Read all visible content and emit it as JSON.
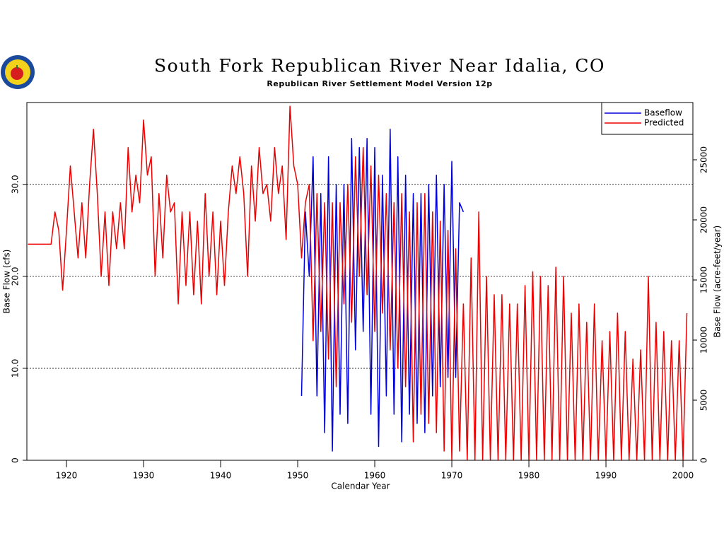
{
  "chart_data": {
    "type": "line",
    "title": "South Fork Republican River Near Idalia, CO",
    "subtitle": "Republican River Settlement Model Version 12p",
    "xlabel": "Calendar Year",
    "ylabel": "Base Flow (cfs)",
    "y2label": "Base Flow (acre-feet/year)",
    "xlim": [
      1914.86,
      2001.28
    ],
    "xticks": [
      1920,
      1930,
      1940,
      1950,
      1960,
      1970,
      1980,
      1990,
      2000
    ],
    "ylim": [
      0,
      38.9
    ],
    "yticks": [
      0,
      {
        "value": 10,
        "label": "10.0"
      },
      {
        "value": 20,
        "label": "20.0"
      },
      {
        "value": 30,
        "label": "30.0"
      }
    ],
    "y2lim": [
      0,
      29765
    ],
    "y2ticks": [
      0,
      5000,
      10000,
      15000,
      20000,
      25000
    ],
    "grid": true,
    "legend": "upper right",
    "x": [
      1915,
      1915.5,
      1916,
      1916.5,
      1917,
      1917.5,
      1918,
      1918.5,
      1919,
      1919.5,
      1920,
      1920.5,
      1921,
      1921.5,
      1922,
      1922.5,
      1923,
      1923.5,
      1924,
      1924.5,
      1925,
      1925.5,
      1926,
      1926.5,
      1927,
      1927.5,
      1928,
      1928.5,
      1929,
      1929.5,
      1930,
      1930.5,
      1931,
      1931.5,
      1932,
      1932.5,
      1933,
      1933.5,
      1934,
      1934.5,
      1935,
      1935.5,
      1936,
      1936.5,
      1937,
      1937.5,
      1938,
      1938.5,
      1939,
      1939.5,
      1940,
      1940.5,
      1941,
      1941.5,
      1942,
      1942.5,
      1943,
      1943.5,
      1944,
      1944.5,
      1945,
      1945.5,
      1946,
      1946.5,
      1947,
      1947.5,
      1948,
      1948.5,
      1949,
      1949.5,
      1950,
      1950.5,
      1951,
      1951.5,
      1952,
      1952.5,
      1953,
      1953.5,
      1954,
      1954.5,
      1955,
      1955.5,
      1956,
      1956.5,
      1957,
      1957.5,
      1958,
      1958.5,
      1959,
      1959.5,
      1960,
      1960.5,
      1961,
      1961.5,
      1962,
      1962.5,
      1963,
      1963.5,
      1964,
      1964.5,
      1965,
      1965.5,
      1966,
      1966.5,
      1967,
      1967.5,
      1968,
      1968.5,
      1969,
      1969.5,
      1970,
      1970.5,
      1971,
      1971.5,
      1972,
      1972.5,
      1973,
      1973.5,
      1974,
      1974.5,
      1975,
      1975.5,
      1976,
      1976.5,
      1977,
      1977.5,
      1978,
      1978.5,
      1979,
      1979.5,
      1980,
      1980.5,
      1981,
      1981.5,
      1982,
      1982.5,
      1983,
      1983.5,
      1984,
      1984.5,
      1985,
      1985.5,
      1986,
      1986.5,
      1987,
      1987.5,
      1988,
      1988.5,
      1989,
      1989.5,
      1990,
      1990.5,
      1991,
      1991.5,
      1992,
      1992.5,
      1993,
      1993.5,
      1994,
      1994.5,
      1995,
      1995.5,
      1996,
      1996.5,
      1997,
      1997.5,
      1998,
      1998.5,
      1999,
      1999.5,
      2000,
      2000.5
    ],
    "series": [
      {
        "name": "Baseflow",
        "color": "#0000dd",
        "values": [
          null,
          null,
          null,
          null,
          null,
          null,
          null,
          null,
          null,
          null,
          null,
          null,
          null,
          null,
          null,
          null,
          null,
          null,
          null,
          null,
          null,
          null,
          null,
          null,
          null,
          null,
          null,
          null,
          null,
          null,
          null,
          null,
          null,
          null,
          null,
          null,
          null,
          null,
          null,
          null,
          null,
          null,
          null,
          null,
          null,
          null,
          null,
          null,
          null,
          null,
          null,
          null,
          null,
          null,
          null,
          null,
          null,
          null,
          null,
          null,
          null,
          null,
          null,
          null,
          null,
          null,
          null,
          null,
          null,
          null,
          null,
          7,
          27,
          20,
          33,
          7,
          29,
          3,
          33,
          1,
          30,
          5,
          30,
          4,
          35,
          12,
          34,
          14,
          35,
          5,
          34,
          1.5,
          31,
          7,
          36,
          5,
          33,
          2,
          31,
          5,
          29,
          4,
          29,
          3,
          30,
          7,
          31,
          8,
          30,
          9,
          32.5,
          9,
          28,
          27,
          null,
          null,
          null,
          null,
          null,
          null,
          null,
          null,
          null,
          null,
          null,
          null,
          null,
          null,
          null,
          null,
          null,
          null,
          null,
          null,
          null,
          null,
          null,
          null,
          null,
          null,
          null,
          null,
          null,
          null,
          null,
          null,
          null,
          null,
          null,
          null,
          null,
          null,
          null,
          null,
          null,
          null,
          null,
          null,
          null,
          null,
          null,
          null,
          null,
          null,
          null,
          null,
          null,
          null,
          null,
          null,
          null,
          null
        ]
      },
      {
        "name": "Predicted",
        "color": "#ee0000",
        "values": [
          23.5,
          23.5,
          23.5,
          23.5,
          23.5,
          23.5,
          23.5,
          27,
          25,
          18.5,
          25,
          32,
          27,
          22,
          28,
          22,
          30,
          36,
          29,
          20,
          27,
          19,
          27,
          23,
          28,
          23,
          34,
          27,
          31,
          28,
          37,
          31,
          33,
          20,
          29,
          22,
          31,
          27,
          28,
          17,
          27,
          19,
          27,
          18,
          26,
          17,
          29,
          20,
          27,
          18,
          26,
          19,
          27,
          32,
          29,
          33,
          29,
          20,
          32,
          26,
          34,
          29,
          30,
          26,
          34,
          29,
          32,
          24,
          38.5,
          32,
          30,
          22,
          28,
          30,
          13,
          29,
          14,
          28,
          11,
          28,
          8,
          28,
          17,
          30,
          15,
          33,
          20,
          34,
          18,
          32,
          14,
          31,
          16,
          29,
          12,
          28,
          10,
          29,
          8,
          27,
          2,
          28,
          5,
          29,
          4,
          27,
          3,
          26,
          1,
          25,
          0,
          23,
          1,
          17,
          0,
          22,
          0,
          27,
          0,
          20,
          0,
          18,
          0,
          18,
          0,
          17,
          0,
          17,
          0,
          19,
          0,
          20.5,
          0,
          20,
          0,
          19,
          0,
          21,
          0,
          20,
          0,
          16,
          0,
          17,
          0,
          15,
          0,
          17,
          0,
          13,
          0,
          14,
          0,
          16,
          0,
          14,
          0,
          11,
          0,
          12,
          0,
          20,
          0,
          15,
          0,
          14,
          0,
          13,
          0,
          13,
          0,
          16
        ]
      }
    ]
  }
}
